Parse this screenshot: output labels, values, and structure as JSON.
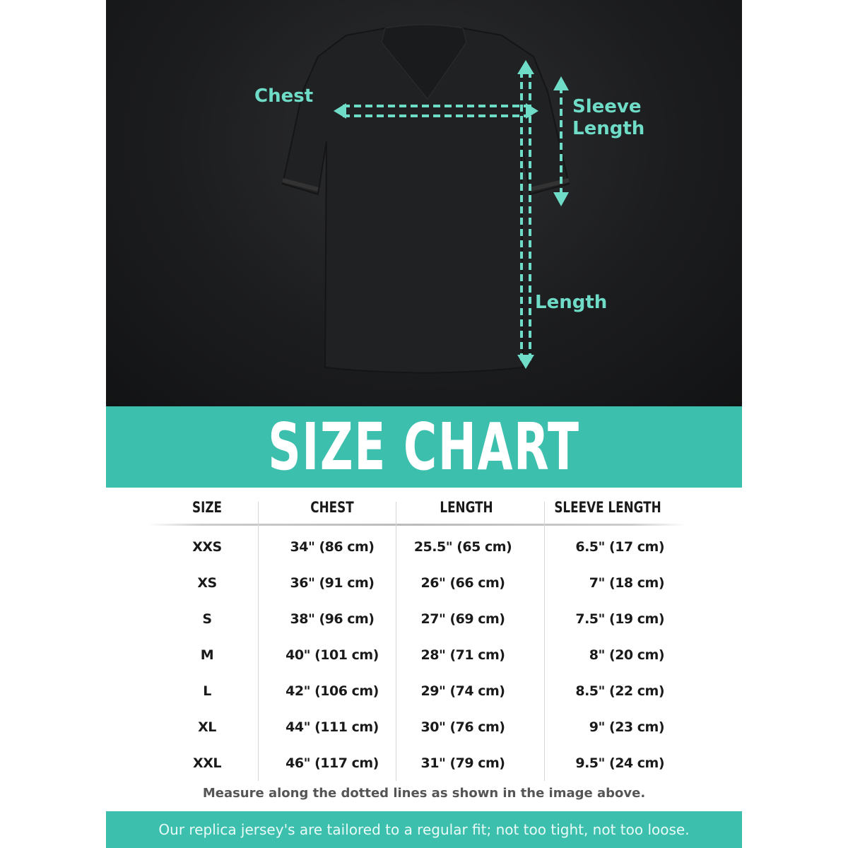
{
  "diagram": {
    "labels": {
      "chest": "Chest",
      "sleeve": "Sleeve Length",
      "length": "Length"
    },
    "accent_color": "#6fdcc8"
  },
  "banner": {
    "title": "SIZE CHART",
    "color": "#3dbfae"
  },
  "table": {
    "headers": [
      "SIZE",
      "CHEST",
      "LENGTH",
      "SLEEVE LENGTH"
    ],
    "rows": [
      [
        "XXS",
        "34\" (86 cm)",
        "25.5\" (65 cm)",
        "6.5\" (17 cm)"
      ],
      [
        "XS",
        "36\" (91 cm)",
        "26\" (66 cm)",
        "7\" (18 cm)"
      ],
      [
        "S",
        "38\" (96 cm)",
        "27\" (69 cm)",
        "7.5\" (19 cm)"
      ],
      [
        "M",
        "40\" (101 cm)",
        "28\" (71 cm)",
        "8\" (20 cm)"
      ],
      [
        "L",
        "42\" (106 cm)",
        "29\" (74 cm)",
        "8.5\" (22 cm)"
      ],
      [
        "XL",
        "44\" (111 cm)",
        "30\" (76 cm)",
        "9\" (23 cm)"
      ],
      [
        "XXL",
        "46\" (117 cm)",
        "31\" (79 cm)",
        "9.5\" (24 cm)"
      ]
    ]
  },
  "note": "Measure along the dotted lines as shown in the image above.",
  "footer": "Our replica jersey's are tailored to a regular fit; not too tight, not too loose."
}
